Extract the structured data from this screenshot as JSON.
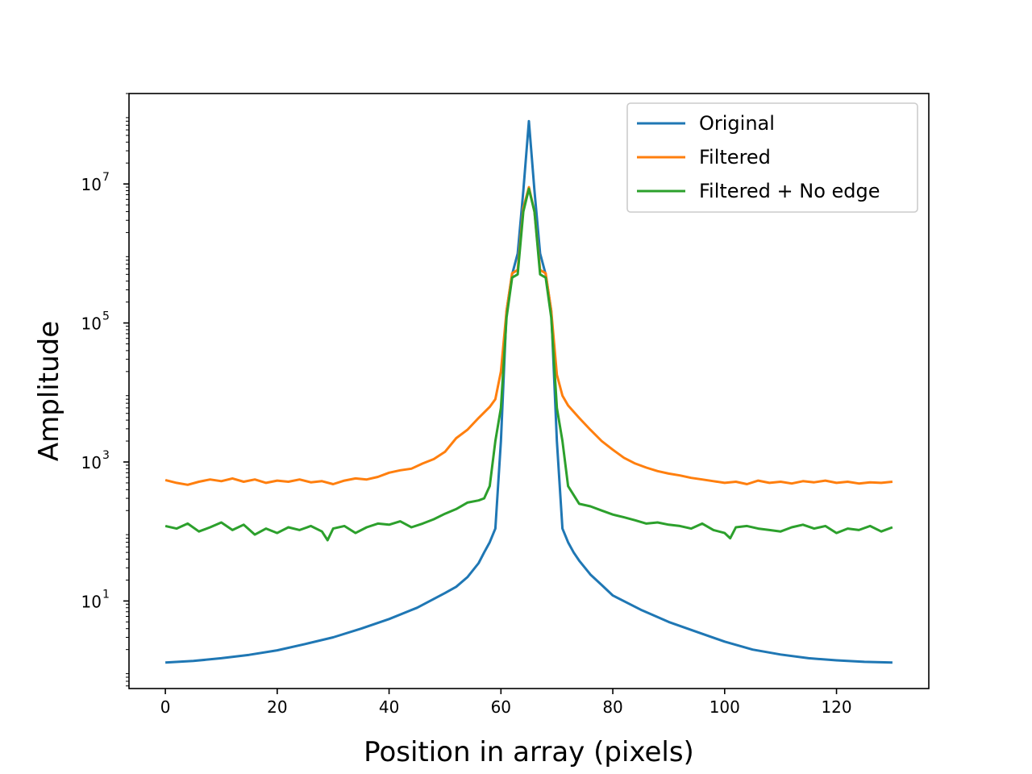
{
  "chart_data": {
    "type": "line",
    "xlabel": "Position in array (pixels)",
    "ylabel": "Amplitude",
    "xlim": [
      -6.5,
      136.5
    ],
    "ylim": [
      0.55,
      200000000
    ],
    "yscale": "log",
    "grid": false,
    "legend": "top-right",
    "x_ticks": [
      0,
      20,
      40,
      60,
      80,
      100,
      120
    ],
    "y_ticks": [
      {
        "value": 10,
        "base": "10",
        "exp": "1"
      },
      {
        "value": 1000,
        "base": "10",
        "exp": "3"
      },
      {
        "value": 100000,
        "base": "10",
        "exp": "5"
      },
      {
        "value": 10000000,
        "base": "10",
        "exp": "7"
      }
    ],
    "series": [
      {
        "name": "Original",
        "color": "#1f77b4",
        "x": [
          0,
          5,
          10,
          15,
          20,
          25,
          30,
          35,
          40,
          45,
          50,
          52,
          54,
          56,
          57,
          58,
          59,
          60,
          61,
          62,
          63,
          64,
          65,
          66,
          67,
          68,
          69,
          70,
          71,
          72,
          73,
          74,
          76,
          78,
          80,
          85,
          90,
          95,
          100,
          105,
          110,
          115,
          120,
          125,
          130
        ],
        "y": [
          1.3,
          1.37,
          1.5,
          1.68,
          1.95,
          2.4,
          3.0,
          4.0,
          5.5,
          8.0,
          13,
          16,
          22,
          35,
          50,
          70,
          110,
          2000,
          150000,
          500000,
          1000000,
          8000000,
          80000000,
          8000000,
          1000000,
          500000,
          150000,
          2000,
          110,
          70,
          50,
          38,
          24,
          17,
          12,
          7.5,
          5.0,
          3.6,
          2.6,
          2.0,
          1.7,
          1.5,
          1.4,
          1.33,
          1.3
        ]
      },
      {
        "name": "Filtered",
        "color": "#ff7f0e",
        "x": [
          0,
          2,
          4,
          6,
          8,
          10,
          12,
          14,
          16,
          18,
          20,
          22,
          24,
          26,
          28,
          30,
          32,
          34,
          36,
          38,
          40,
          42,
          44,
          46,
          48,
          50,
          52,
          54,
          56,
          58,
          59,
          60,
          61,
          62,
          63,
          64,
          65,
          66,
          67,
          68,
          69,
          70,
          71,
          72,
          74,
          76,
          78,
          80,
          82,
          84,
          86,
          88,
          90,
          92,
          94,
          96,
          98,
          100,
          102,
          104,
          106,
          108,
          110,
          112,
          114,
          116,
          118,
          120,
          122,
          124,
          126,
          128,
          130
        ],
        "y": [
          550,
          500,
          470,
          520,
          560,
          530,
          580,
          520,
          560,
          500,
          540,
          520,
          560,
          510,
          530,
          480,
          540,
          580,
          560,
          610,
          700,
          760,
          800,
          950,
          1100,
          1400,
          2200,
          2900,
          4300,
          6200,
          8000,
          20000,
          150000,
          520000,
          580000,
          4500000,
          9000000,
          4000000,
          580000,
          520000,
          150000,
          18000,
          9000,
          6500,
          4300,
          2900,
          2000,
          1500,
          1150,
          950,
          830,
          740,
          680,
          640,
          590,
          560,
          530,
          500,
          520,
          480,
          540,
          500,
          520,
          490,
          530,
          510,
          540,
          500,
          520,
          490,
          510,
          500,
          520
        ]
      },
      {
        "name": "Filtered + No edge",
        "color": "#2ca02c",
        "x": [
          0,
          2,
          4,
          6,
          8,
          10,
          12,
          14,
          16,
          18,
          20,
          22,
          24,
          26,
          28,
          29,
          30,
          32,
          34,
          36,
          38,
          40,
          42,
          44,
          46,
          48,
          50,
          52,
          54,
          56,
          57,
          58,
          59,
          60,
          61,
          62,
          63,
          64,
          65,
          66,
          67,
          68,
          69,
          70,
          71,
          72,
          74,
          76,
          78,
          80,
          82,
          84,
          86,
          88,
          90,
          92,
          94,
          96,
          98,
          100,
          101,
          102,
          104,
          106,
          108,
          110,
          112,
          114,
          116,
          118,
          120,
          122,
          124,
          126,
          128,
          130
        ],
        "y": [
          120,
          110,
          130,
          100,
          115,
          135,
          105,
          125,
          90,
          110,
          95,
          115,
          105,
          120,
          100,
          75,
          110,
          120,
          95,
          115,
          130,
          125,
          140,
          115,
          130,
          150,
          180,
          210,
          260,
          280,
          300,
          450,
          2000,
          6000,
          120000,
          450000,
          500000,
          4000000,
          8500000,
          4000000,
          500000,
          450000,
          120000,
          6000,
          2000,
          450,
          250,
          230,
          200,
          175,
          160,
          145,
          130,
          135,
          125,
          120,
          110,
          130,
          105,
          95,
          80,
          115,
          120,
          110,
          105,
          100,
          115,
          125,
          110,
          120,
          95,
          110,
          105,
          120,
          100,
          115
        ]
      }
    ]
  }
}
